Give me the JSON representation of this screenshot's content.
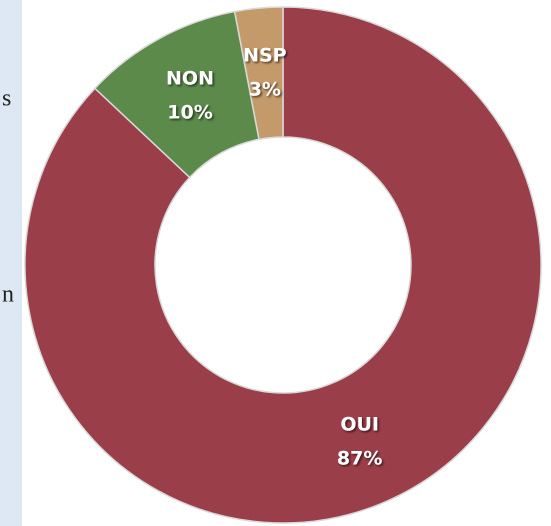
{
  "left_text": [
    "s",
    "n"
  ],
  "chart_data": {
    "type": "donut",
    "categories": [
      "OUI",
      "NON",
      "NSP"
    ],
    "values": [
      87,
      10,
      3
    ],
    "value_labels": [
      "87%",
      "10%",
      "3%"
    ],
    "colors": [
      "#9a3e49",
      "#5b8a4b",
      "#c59a6a"
    ]
  }
}
